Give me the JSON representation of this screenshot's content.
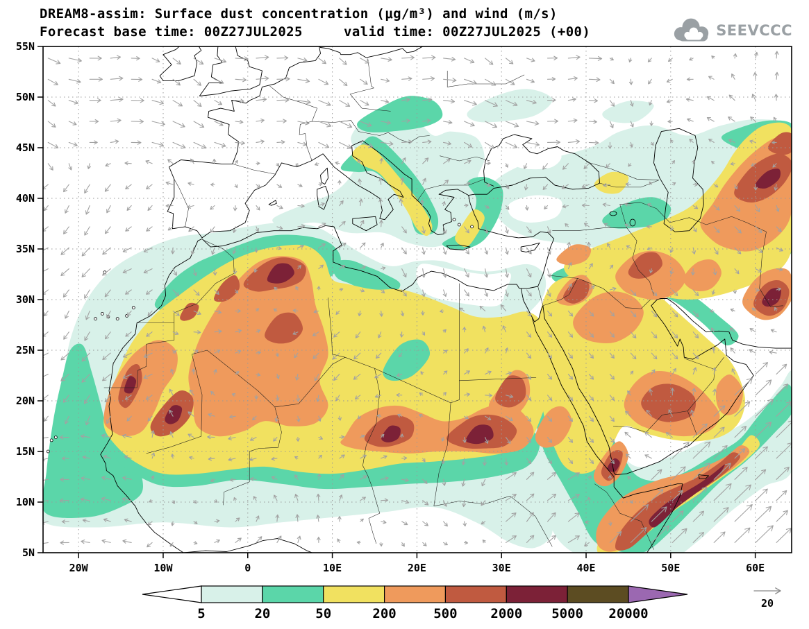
{
  "header": {
    "title_line1": "DREAM8-assim: Surface dust concentration (μg/m³) and wind (m/s)",
    "title_line2": "Forecast base time: 00Z27JUL2025     valid time: 00Z27JUL2025 (+00)",
    "logo_text": "SEEVCCC"
  },
  "axes": {
    "lat_ticks": [
      {
        "label": "55N",
        "lat": 55
      },
      {
        "label": "50N",
        "lat": 50
      },
      {
        "label": "45N",
        "lat": 45
      },
      {
        "label": "40N",
        "lat": 40
      },
      {
        "label": "35N",
        "lat": 35
      },
      {
        "label": "30N",
        "lat": 30
      },
      {
        "label": "25N",
        "lat": 25
      },
      {
        "label": "20N",
        "lat": 20
      },
      {
        "label": "15N",
        "lat": 15
      },
      {
        "label": "10N",
        "lat": 10
      },
      {
        "label": "5N",
        "lat": 5
      }
    ],
    "lon_ticks": [
      {
        "label": "20W",
        "lon": -20
      },
      {
        "label": "10W",
        "lon": -10
      },
      {
        "label": "0",
        "lon": 0
      },
      {
        "label": "10E",
        "lon": 10
      },
      {
        "label": "20E",
        "lon": 20
      },
      {
        "label": "30E",
        "lon": 30
      },
      {
        "label": "40E",
        "lon": 40
      },
      {
        "label": "50E",
        "lon": 50
      },
      {
        "label": "60E",
        "lon": 60
      }
    ]
  },
  "legend": {
    "boundaries": [
      "5",
      "20",
      "50",
      "200",
      "500",
      "2000",
      "5000",
      "20000"
    ],
    "colors": [
      "#ffffff",
      "#d8f1e9",
      "#5bd6a9",
      "#f1e160",
      "#ef9a5c",
      "#c05a40",
      "#7c2137",
      "#5c4c22",
      "#9b68b1"
    ],
    "wind_ref_label": "20"
  },
  "wind": {
    "arrow_color": "#a2a2a2"
  },
  "map_colors": {
    "coastline": "#000000",
    "border": "#1a1a1a",
    "grid": "#999999",
    "background": "#ffffff"
  }
}
